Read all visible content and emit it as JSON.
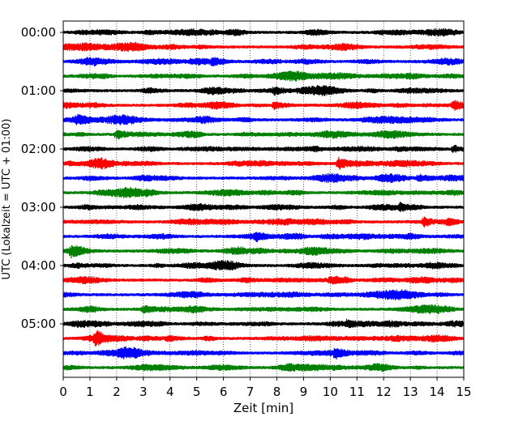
{
  "chart_data": {
    "type": "line",
    "title": "",
    "xlabel": "Zeit  [min]",
    "ylabel": "UTC (Lokalzeit = UTC + 01:00)",
    "xlim": [
      0,
      15
    ],
    "x_ticks": [
      "0",
      "1",
      "2",
      "3",
      "4",
      "5",
      "6",
      "7",
      "8",
      "9",
      "10",
      "11",
      "12",
      "13",
      "14",
      "15"
    ],
    "y_ticks": [
      "00:00",
      "01:00",
      "02:00",
      "03:00",
      "04:00",
      "05:00"
    ],
    "grid": "vertical dotted lines at each minute",
    "trace_interval_minutes": 15,
    "trace_colors": [
      "#000000",
      "#ff0000",
      "#0000ff",
      "#008000"
    ],
    "traces": [
      {
        "start": "00:00",
        "color": "#000000",
        "events": []
      },
      {
        "start": "00:15",
        "color": "#ff0000",
        "events": []
      },
      {
        "start": "00:30",
        "color": "#0000ff",
        "events": [
          {
            "t": 5.6,
            "amp": 1.6
          }
        ]
      },
      {
        "start": "00:45",
        "color": "#008000",
        "events": []
      },
      {
        "start": "01:00",
        "color": "#000000",
        "events": [
          {
            "t": 7.9,
            "amp": 1.8
          }
        ]
      },
      {
        "start": "01:15",
        "color": "#ff0000",
        "events": [
          {
            "t": 7.9,
            "amp": 2.0
          },
          {
            "t": 14.6,
            "amp": 2.2
          }
        ]
      },
      {
        "start": "01:30",
        "color": "#0000ff",
        "events": [
          {
            "t": 0.5,
            "amp": 2.0
          }
        ]
      },
      {
        "start": "01:45",
        "color": "#008000",
        "events": [
          {
            "t": 2.0,
            "amp": 2.2
          }
        ]
      },
      {
        "start": "02:00",
        "color": "#000000",
        "events": [
          {
            "t": 14.6,
            "amp": 1.8
          }
        ]
      },
      {
        "start": "02:15",
        "color": "#ff0000",
        "events": [
          {
            "t": 10.3,
            "amp": 3.2
          }
        ]
      },
      {
        "start": "02:30",
        "color": "#0000ff",
        "events": [
          {
            "t": 13.3,
            "amp": 2.0
          }
        ]
      },
      {
        "start": "02:45",
        "color": "#008000",
        "events": [
          {
            "t": 3.1,
            "amp": 1.6
          }
        ]
      },
      {
        "start": "03:00",
        "color": "#000000",
        "events": [
          {
            "t": 12.6,
            "amp": 1.6
          }
        ]
      },
      {
        "start": "03:15",
        "color": "#ff0000",
        "events": [
          {
            "t": 13.5,
            "amp": 2.2
          }
        ]
      },
      {
        "start": "03:30",
        "color": "#0000ff",
        "events": [
          {
            "t": 7.2,
            "amp": 1.8
          }
        ]
      },
      {
        "start": "03:45",
        "color": "#008000",
        "events": [
          {
            "t": 0.3,
            "amp": 2.6
          }
        ]
      },
      {
        "start": "04:00",
        "color": "#000000",
        "events": []
      },
      {
        "start": "04:15",
        "color": "#ff0000",
        "events": [
          {
            "t": 10.0,
            "amp": 1.6
          }
        ]
      },
      {
        "start": "04:30",
        "color": "#0000ff",
        "events": []
      },
      {
        "start": "04:45",
        "color": "#008000",
        "events": [
          {
            "t": 3.0,
            "amp": 1.4
          }
        ]
      },
      {
        "start": "05:00",
        "color": "#000000",
        "events": [
          {
            "t": 10.6,
            "amp": 1.6
          }
        ]
      },
      {
        "start": "05:15",
        "color": "#ff0000",
        "events": [
          {
            "t": 1.2,
            "amp": 3.5
          },
          {
            "t": 3.9,
            "amp": 1.6
          }
        ]
      },
      {
        "start": "05:30",
        "color": "#0000ff",
        "events": [
          {
            "t": 10.2,
            "amp": 2.4
          }
        ]
      },
      {
        "start": "05:45",
        "color": "#008000",
        "events": []
      }
    ]
  }
}
